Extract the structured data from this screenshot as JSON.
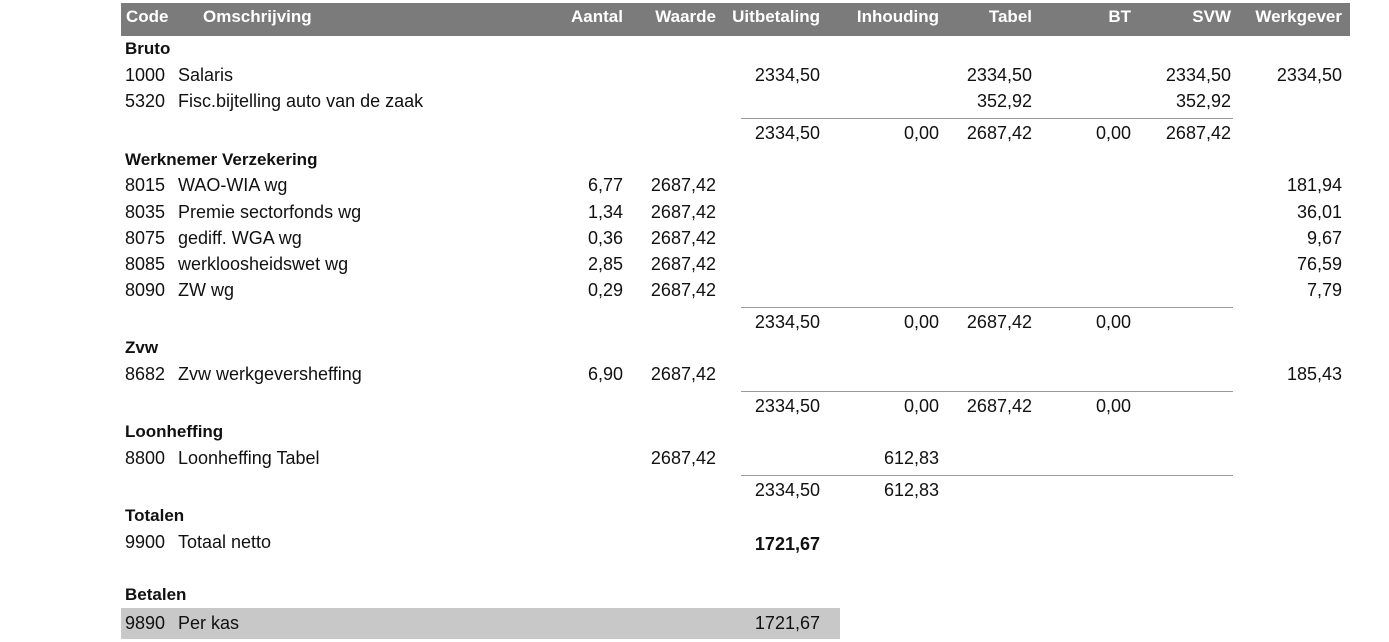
{
  "header": {
    "code": "Code",
    "omschrijving": "Omschrijving",
    "aantal": "Aantal",
    "waarde": "Waarde",
    "uitbetaling": "Uitbetaling",
    "inhouding": "Inhouding",
    "tabel": "Tabel",
    "bt": "BT",
    "svw": "SVW",
    "werkgever": "Werkgever"
  },
  "bruto": {
    "title": "Bruto",
    "rows": [
      {
        "code": "1000",
        "desc": "Salaris",
        "aantal": "",
        "waarde": "",
        "uitbetaling": "2334,50",
        "inhouding": "",
        "tabel": "2334,50",
        "bt": "",
        "svw": "2334,50",
        "werkgever": "2334,50"
      },
      {
        "code": "5320",
        "desc": "Fisc.bijtelling auto van de zaak",
        "aantal": "",
        "waarde": "",
        "uitbetaling": "",
        "inhouding": "",
        "tabel": "352,92",
        "bt": "",
        "svw": "352,92",
        "werkgever": ""
      }
    ],
    "subtotal": {
      "uitbetaling": "2334,50",
      "inhouding": "0,00",
      "tabel": "2687,42",
      "bt": "0,00",
      "svw": "2687,42"
    }
  },
  "werknemer": {
    "title": "Werknemer Verzekering",
    "rows": [
      {
        "code": "8015",
        "desc": "WAO-WIA wg",
        "aantal": "6,77",
        "waarde": "2687,42",
        "werkgever": "181,94"
      },
      {
        "code": "8035",
        "desc": "Premie sectorfonds wg",
        "aantal": "1,34",
        "waarde": "2687,42",
        "werkgever": "36,01"
      },
      {
        "code": "8075",
        "desc": "gediff. WGA wg",
        "aantal": "0,36",
        "waarde": "2687,42",
        "werkgever": "9,67"
      },
      {
        "code": "8085",
        "desc": "werkloosheidswet wg",
        "aantal": "2,85",
        "waarde": "2687,42",
        "werkgever": "76,59"
      },
      {
        "code": "8090",
        "desc": "ZW wg",
        "aantal": "0,29",
        "waarde": "2687,42",
        "werkgever": "7,79"
      }
    ],
    "subtotal": {
      "uitbetaling": "2334,50",
      "inhouding": "0,00",
      "tabel": "2687,42",
      "bt": "0,00"
    }
  },
  "zvw": {
    "title": "Zvw",
    "rows": [
      {
        "code": "8682",
        "desc": "Zvw werkgeversheffing",
        "aantal": "6,90",
        "waarde": "2687,42",
        "werkgever": "185,43"
      }
    ],
    "subtotal": {
      "uitbetaling": "2334,50",
      "inhouding": "0,00",
      "tabel": "2687,42",
      "bt": "0,00"
    }
  },
  "loonheffing": {
    "title": "Loonheffing",
    "rows": [
      {
        "code": "8800",
        "desc": "Loonheffing Tabel",
        "waarde": "2687,42",
        "inhouding": "612,83"
      }
    ],
    "subtotal": {
      "uitbetaling": "2334,50",
      "inhouding": "612,83"
    }
  },
  "totalen": {
    "title": "Totalen",
    "rows": [
      {
        "code": "9900",
        "desc": "Totaal netto",
        "uitbetaling": "1721,67"
      }
    ]
  },
  "betalen": {
    "title": "Betalen",
    "rows": [
      {
        "code": "9890",
        "desc": "Per kas",
        "uitbetaling": "1721,67"
      }
    ]
  }
}
